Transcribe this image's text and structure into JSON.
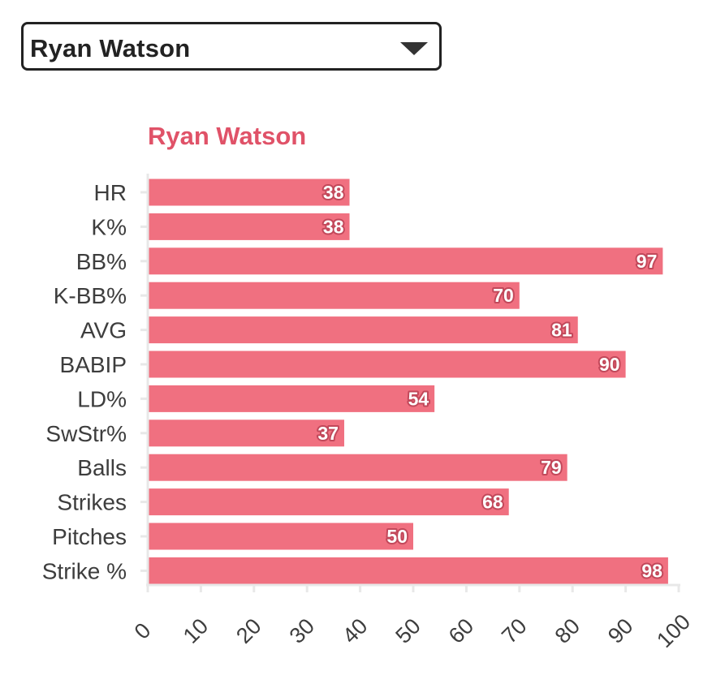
{
  "selector": {
    "selected": "Ryan Watson",
    "icon": "triangle-down-icon"
  },
  "colors": {
    "bar": "#f07080",
    "bar_label_outline": "#c2485a",
    "title": "#e05268",
    "axis": "#e8e8e8",
    "text": "#3d3d3d"
  },
  "chart_data": {
    "type": "bar",
    "orientation": "horizontal",
    "title": "Ryan Watson",
    "xlabel": "",
    "ylabel": "",
    "xlim": [
      0,
      100
    ],
    "xticks": [
      0,
      10,
      20,
      30,
      40,
      50,
      60,
      70,
      80,
      90,
      100
    ],
    "categories": [
      "HR",
      "K%",
      "BB%",
      "K-BB%",
      "AVG",
      "BABIP",
      "LD%",
      "SwStr%",
      "Balls",
      "Strikes",
      "Pitches",
      "Strike %"
    ],
    "values": [
      38,
      38,
      97,
      70,
      81,
      90,
      54,
      37,
      79,
      68,
      50,
      98
    ],
    "grid": false,
    "legend": "none"
  }
}
